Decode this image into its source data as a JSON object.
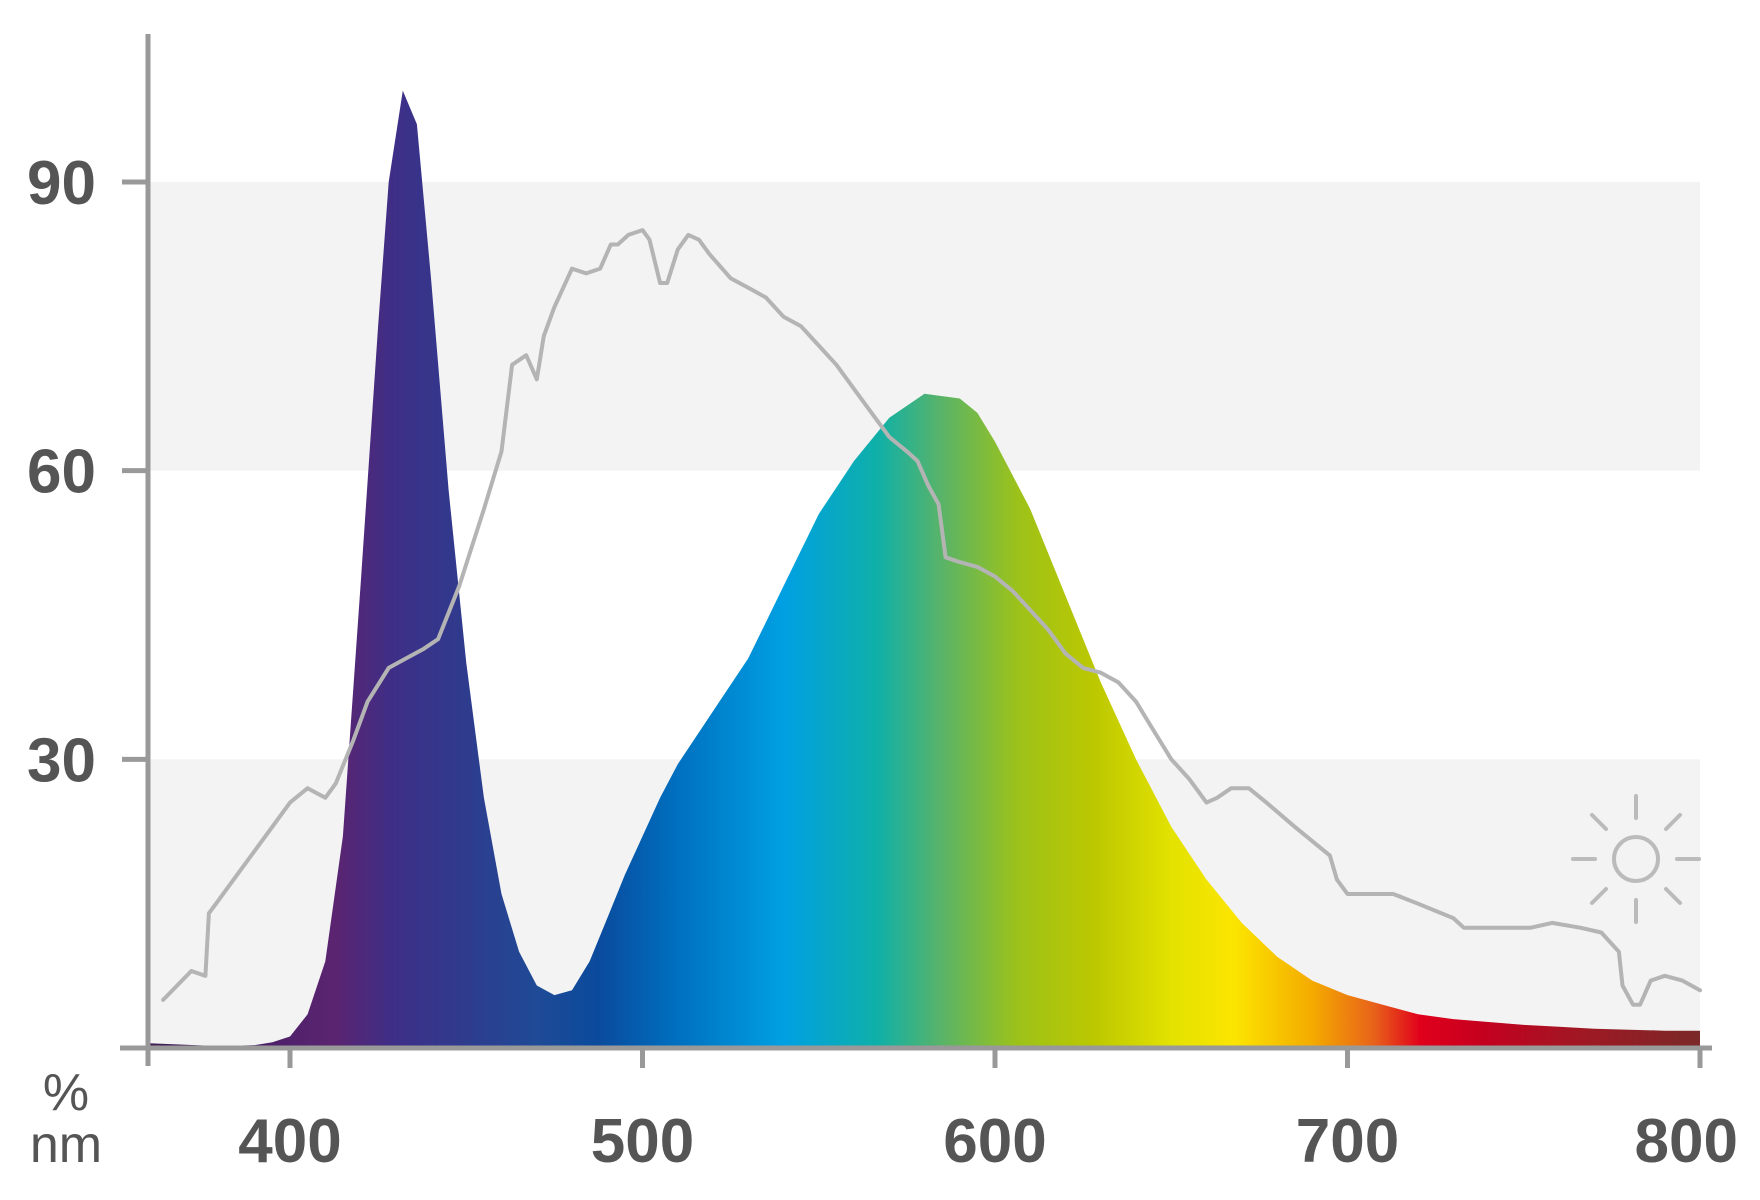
{
  "chart_data": {
    "type": "area",
    "title": "",
    "xlabel": "nm",
    "ylabel": "%",
    "xlim": [
      360,
      800
    ],
    "ylim": [
      0,
      105
    ],
    "x_ticks": [
      400,
      500,
      600,
      700,
      800
    ],
    "y_ticks": [
      30,
      60,
      90
    ],
    "grid": "alternating horizontal bands",
    "legend": "none",
    "series": [
      {
        "kind": "area",
        "fill": "spectrum-gradient",
        "x": [
          360,
          380,
          390,
          395,
          400,
          405,
          410,
          415,
          420,
          425,
          428,
          432,
          436,
          440,
          445,
          450,
          455,
          460,
          465,
          470,
          475,
          480,
          485,
          490,
          495,
          500,
          505,
          510,
          520,
          530,
          540,
          550,
          560,
          570,
          580,
          590,
          595,
          600,
          610,
          620,
          630,
          640,
          650,
          660,
          670,
          680,
          690,
          700,
          710,
          720,
          730,
          740,
          750,
          760,
          770,
          780,
          790,
          800
        ],
        "values": [
          0.5,
          0.2,
          0.3,
          0.6,
          1.2,
          3.5,
          9,
          22,
          48,
          75,
          90,
          99.5,
          96,
          80,
          58,
          40,
          26,
          16,
          10,
          6.5,
          5.5,
          6,
          9,
          13.5,
          18,
          22,
          26,
          29.5,
          35,
          40.5,
          48,
          55.5,
          61,
          65.5,
          68,
          67.5,
          66,
          63,
          56,
          47,
          38,
          30,
          23,
          17.5,
          13,
          9.5,
          7,
          5.5,
          4.5,
          3.5,
          3,
          2.7,
          2.4,
          2.2,
          2,
          1.9,
          1.8,
          1.8
        ]
      },
      {
        "kind": "line",
        "color": "#b4b4b4",
        "x": [
          364,
          368,
          372,
          376,
          377,
          380,
          385,
          390,
          395,
          400,
          405,
          410,
          413,
          418,
          422,
          428,
          433,
          438,
          442,
          448,
          455,
          460,
          463,
          467,
          470,
          472,
          475,
          480,
          484,
          488,
          491,
          493,
          496,
          500,
          502,
          505,
          507,
          510,
          513,
          516,
          519,
          525,
          530,
          535,
          540,
          545,
          550,
          555,
          560,
          565,
          570,
          575,
          578,
          581,
          584,
          586,
          590,
          595,
          600,
          605,
          610,
          615,
          620,
          625,
          630,
          635,
          640,
          645,
          650,
          655,
          660,
          663,
          667,
          672,
          677,
          685,
          695,
          697,
          700,
          705,
          713,
          720,
          730,
          733,
          740,
          745,
          752,
          758,
          766,
          772,
          777,
          778,
          781,
          783,
          786,
          790,
          795,
          800
        ],
        "values": [
          5,
          6.5,
          8,
          7.5,
          14,
          15.5,
          18,
          20.5,
          23,
          25.5,
          27,
          26,
          27.5,
          32,
          36,
          39.5,
          40.5,
          41.5,
          42.5,
          48,
          56,
          62,
          71,
          72,
          69.5,
          74,
          77,
          81,
          80.5,
          81,
          83.5,
          83.5,
          84.5,
          85,
          84,
          79.5,
          79.5,
          83,
          84.5,
          84,
          82.5,
          80,
          79,
          78,
          76,
          75,
          73,
          71,
          68.5,
          66,
          63.5,
          62,
          61,
          58.5,
          56.5,
          51,
          50.5,
          50,
          49,
          47.5,
          45.5,
          43.5,
          41,
          39.5,
          39,
          38,
          36,
          33,
          30,
          28,
          25.5,
          26,
          27,
          27,
          25.5,
          23,
          20,
          17.5,
          16,
          16,
          16,
          15,
          13.5,
          12.5,
          12.5,
          12.5,
          12.5,
          13,
          12.5,
          12,
          10,
          6.5,
          4.5,
          4.5,
          7,
          7.5,
          7,
          6
        ]
      }
    ],
    "annotations": [
      {
        "type": "icon",
        "name": "sun-icon",
        "position": "right"
      }
    ],
    "colors": {
      "axis": "#999999",
      "band": "#f3f3f3",
      "label": "#555555",
      "daylight_line": "#b4b4b4"
    }
  }
}
